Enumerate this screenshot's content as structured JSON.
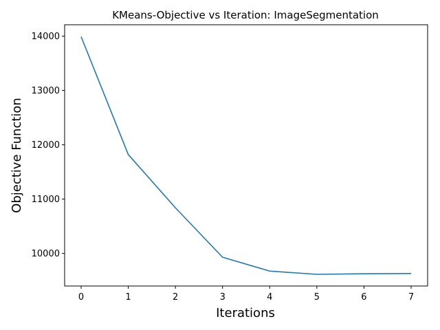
{
  "chart_data": {
    "type": "line",
    "title": "KMeans-Objective vs Iteration: ImageSegmentation",
    "xlabel": "Iterations",
    "ylabel": "Objective Function",
    "xlim": [
      -0.35,
      7.35
    ],
    "ylim": [
      9400,
      14210
    ],
    "x_ticks": [
      0,
      1,
      2,
      3,
      4,
      5,
      6,
      7
    ],
    "y_ticks": [
      10000,
      11000,
      12000,
      13000,
      14000
    ],
    "grid": false,
    "legend": "none",
    "series": [
      {
        "color": "#1f77b4",
        "x": [
          0,
          1,
          2,
          3,
          4,
          5,
          6,
          7
        ],
        "y": [
          13990,
          11820,
          10840,
          9930,
          9675,
          9615,
          9625,
          9630
        ]
      }
    ]
  }
}
